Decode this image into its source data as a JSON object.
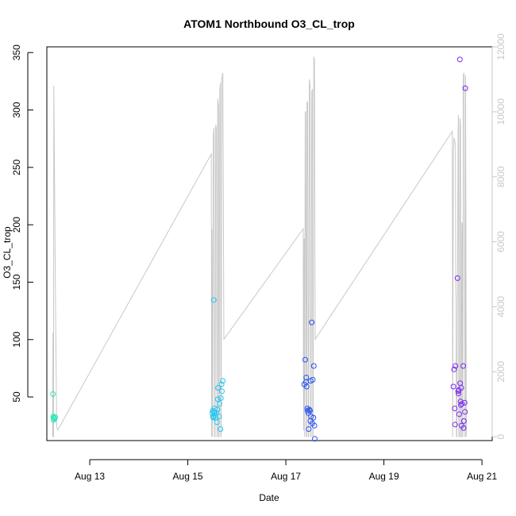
{
  "chart_data": {
    "type": "scatter",
    "title": "ATOM1 Northbound O3_CL_trop",
    "xlabel": "Date",
    "ylabel": "O3_CL_trop",
    "xlim": [
      "2016-08-12T03:00",
      "2016-08-21T05:00"
    ],
    "ylim": [
      12,
      355
    ],
    "y2lim": [
      -120,
      12000
    ],
    "x_ticks": [
      {
        "label": "Aug 13",
        "date": "2016-08-13T00:00"
      },
      {
        "label": "Aug 15",
        "date": "2016-08-15T00:00"
      },
      {
        "label": "Aug 17",
        "date": "2016-08-17T00:00"
      },
      {
        "label": "Aug 19",
        "date": "2016-08-19T00:00"
      },
      {
        "label": "Aug 21",
        "date": "2016-08-21T00:00"
      }
    ],
    "y_ticks": [
      {
        "label": "50",
        "value": 50
      },
      {
        "label": "100",
        "value": 100
      },
      {
        "label": "150",
        "value": 150
      },
      {
        "label": "200",
        "value": 200
      },
      {
        "label": "250",
        "value": 250
      },
      {
        "label": "300",
        "value": 300
      },
      {
        "label": "350",
        "value": 350
      }
    ],
    "y2_ticks": [
      {
        "label": "0",
        "value": 0
      },
      {
        "label": "2000",
        "value": 2000
      },
      {
        "label": "4000",
        "value": 4000
      },
      {
        "label": "6000",
        "value": 6000
      },
      {
        "label": "8000",
        "value": 8000
      },
      {
        "label": "10000",
        "value": 10000
      },
      {
        "label": "12000",
        "value": 12000
      }
    ],
    "grid": false,
    "colors": {
      "altitude_line": "#c8c8c8",
      "flight1": "#2ee8b8",
      "flight2": "#25c6ee",
      "flight3": "#2a52ee",
      "flight4": "#7a28ee"
    },
    "series": [
      {
        "color_key": "flight1",
        "points": [
          [
            "2016-08-12T06:00",
            52.5
          ],
          [
            "2016-08-12T06:10",
            33
          ],
          [
            "2016-08-12T06:15",
            30
          ],
          [
            "2016-08-12T06:25",
            32
          ],
          [
            "2016-08-12T06:40",
            31.5
          ],
          [
            "2016-08-12T06:50",
            31
          ],
          [
            "2016-08-12T07:05",
            32.5
          ]
        ]
      },
      {
        "color_key": "flight2",
        "points": [
          [
            "2016-08-15T12:00",
            36
          ],
          [
            "2016-08-15T12:10",
            38
          ],
          [
            "2016-08-15T12:20",
            33
          ],
          [
            "2016-08-15T12:30",
            32
          ],
          [
            "2016-08-15T12:40",
            134.5
          ],
          [
            "2016-08-15T12:50",
            37
          ],
          [
            "2016-08-15T13:00",
            36
          ],
          [
            "2016-08-15T13:10",
            40
          ],
          [
            "2016-08-15T13:20",
            34
          ],
          [
            "2016-08-15T13:30",
            32
          ],
          [
            "2016-08-15T14:00",
            36
          ],
          [
            "2016-08-15T14:20",
            28
          ],
          [
            "2016-08-15T14:30",
            39
          ],
          [
            "2016-08-15T14:40",
            48
          ],
          [
            "2016-08-15T14:50",
            58
          ],
          [
            "2016-08-15T15:20",
            33
          ],
          [
            "2016-08-15T15:30",
            44
          ],
          [
            "2016-08-15T16:00",
            22
          ],
          [
            "2016-08-15T16:10",
            49
          ],
          [
            "2016-08-15T16:30",
            61
          ],
          [
            "2016-08-15T16:40",
            55
          ],
          [
            "2016-08-15T17:10",
            64
          ]
        ]
      },
      {
        "color_key": "flight3",
        "points": [
          [
            "2016-08-17T09:00",
            61
          ],
          [
            "2016-08-17T09:30",
            82.5
          ],
          [
            "2016-08-17T09:50",
            63
          ],
          [
            "2016-08-17T10:00",
            67
          ],
          [
            "2016-08-17T10:10",
            59
          ],
          [
            "2016-08-17T10:30",
            40
          ],
          [
            "2016-08-17T10:40",
            38
          ],
          [
            "2016-08-17T11:00",
            36
          ],
          [
            "2016-08-17T11:10",
            22
          ],
          [
            "2016-08-17T11:30",
            39
          ],
          [
            "2016-08-17T11:50",
            38
          ],
          [
            "2016-08-17T12:00",
            29
          ],
          [
            "2016-08-17T12:10",
            64
          ],
          [
            "2016-08-17T12:20",
            33
          ],
          [
            "2016-08-17T12:40",
            115
          ],
          [
            "2016-08-17T13:00",
            27
          ],
          [
            "2016-08-17T13:10",
            65
          ],
          [
            "2016-08-17T13:30",
            32
          ],
          [
            "2016-08-17T13:40",
            77
          ],
          [
            "2016-08-17T14:00",
            25
          ],
          [
            "2016-08-17T14:10",
            13.5
          ]
        ]
      },
      {
        "color_key": "flight4",
        "points": [
          [
            "2016-08-20T10:00",
            59
          ],
          [
            "2016-08-20T10:20",
            74
          ],
          [
            "2016-08-20T10:40",
            40
          ],
          [
            "2016-08-20T10:50",
            26
          ],
          [
            "2016-08-20T11:00",
            77
          ],
          [
            "2016-08-20T12:00",
            153.5
          ],
          [
            "2016-08-20T12:20",
            55
          ],
          [
            "2016-08-20T12:30",
            53
          ],
          [
            "2016-08-20T12:40",
            56
          ],
          [
            "2016-08-20T12:50",
            35
          ],
          [
            "2016-08-20T13:10",
            344
          ],
          [
            "2016-08-20T13:20",
            62
          ],
          [
            "2016-08-20T13:30",
            46
          ],
          [
            "2016-08-20T13:40",
            43
          ],
          [
            "2016-08-20T13:50",
            58
          ],
          [
            "2016-08-20T14:00",
            25
          ],
          [
            "2016-08-20T14:10",
            44
          ],
          [
            "2016-08-20T14:50",
            77
          ],
          [
            "2016-08-20T15:00",
            23
          ],
          [
            "2016-08-20T15:10",
            29
          ],
          [
            "2016-08-20T15:30",
            45
          ],
          [
            "2016-08-20T15:40",
            37
          ],
          [
            "2016-08-20T15:50",
            319
          ]
        ]
      }
    ],
    "altitude_line": [
      [
        "2016-08-12T05:50",
        0
      ],
      [
        "2016-08-12T06:00",
        3200
      ],
      [
        "2016-08-12T06:10",
        0
      ],
      [
        "2016-08-12T06:15",
        0
      ],
      [
        "2016-08-12T06:25",
        10800
      ],
      [
        "2016-08-12T07:10",
        4800
      ],
      [
        "2016-08-12T07:50",
        300
      ],
      [
        "2016-08-12T08:20",
        200
      ],
      [
        "2016-08-15T11:30",
        8700
      ],
      [
        "2016-08-15T11:40",
        0
      ],
      [
        "2016-08-15T11:50",
        6400
      ],
      [
        "2016-08-15T12:10",
        0
      ],
      [
        "2016-08-15T12:30",
        9300
      ],
      [
        "2016-08-15T12:50",
        9500
      ],
      [
        "2016-08-15T13:10",
        0
      ],
      [
        "2016-08-15T13:20",
        0
      ],
      [
        "2016-08-15T13:40",
        9600
      ],
      [
        "2016-08-15T14:00",
        9500
      ],
      [
        "2016-08-15T14:20",
        0
      ],
      [
        "2016-08-15T14:30",
        0
      ],
      [
        "2016-08-15T14:40",
        10400
      ],
      [
        "2016-08-15T15:00",
        10200
      ],
      [
        "2016-08-15T15:10",
        0
      ],
      [
        "2016-08-15T15:20",
        0
      ],
      [
        "2016-08-15T15:40",
        10700
      ],
      [
        "2016-08-15T16:00",
        10900
      ],
      [
        "2016-08-15T16:10",
        0
      ],
      [
        "2016-08-15T16:20",
        0
      ],
      [
        "2016-08-15T16:40",
        11000
      ],
      [
        "2016-08-15T16:50",
        11100
      ],
      [
        "2016-08-15T17:10",
        11200
      ],
      [
        "2016-08-15T17:40",
        3000
      ],
      [
        "2016-08-17T08:30",
        6400
      ],
      [
        "2016-08-17T08:40",
        200
      ],
      [
        "2016-08-17T09:00",
        6100
      ],
      [
        "2016-08-17T09:10",
        0
      ],
      [
        "2016-08-17T09:30",
        10000
      ],
      [
        "2016-08-17T09:40",
        10000
      ],
      [
        "2016-08-17T10:00",
        0
      ],
      [
        "2016-08-17T10:10",
        0
      ],
      [
        "2016-08-17T10:20",
        10300
      ],
      [
        "2016-08-17T10:40",
        10300
      ],
      [
        "2016-08-17T11:00",
        0
      ],
      [
        "2016-08-17T11:10",
        0
      ],
      [
        "2016-08-17T11:30",
        11000
      ],
      [
        "2016-08-17T11:50",
        10800
      ],
      [
        "2016-08-17T12:10",
        0
      ],
      [
        "2016-08-17T12:20",
        0
      ],
      [
        "2016-08-17T12:40",
        10600
      ],
      [
        "2016-08-17T13:00",
        10700
      ],
      [
        "2016-08-17T13:10",
        0
      ],
      [
        "2016-08-17T13:20",
        0
      ],
      [
        "2016-08-17T13:40",
        11700
      ],
      [
        "2016-08-17T14:00",
        11600
      ],
      [
        "2016-08-17T14:20",
        3000
      ],
      [
        "2016-08-20T09:30",
        9400
      ],
      [
        "2016-08-20T09:40",
        0
      ],
      [
        "2016-08-20T10:00",
        8800
      ],
      [
        "2016-08-20T10:20",
        9200
      ],
      [
        "2016-08-20T10:40",
        9100
      ],
      [
        "2016-08-20T11:00",
        9000
      ],
      [
        "2016-08-20T11:10",
        4600
      ],
      [
        "2016-08-20T11:20",
        4200
      ],
      [
        "2016-08-20T11:30",
        0
      ],
      [
        "2016-08-20T11:40",
        0
      ],
      [
        "2016-08-20T12:20",
        9400
      ],
      [
        "2016-08-20T12:30",
        9900
      ],
      [
        "2016-08-20T12:40",
        0
      ],
      [
        "2016-08-20T13:00",
        0
      ],
      [
        "2016-08-20T13:10",
        9800
      ],
      [
        "2016-08-20T13:30",
        9600
      ],
      [
        "2016-08-20T13:40",
        0
      ],
      [
        "2016-08-20T13:50",
        0
      ],
      [
        "2016-08-20T14:10",
        6600
      ],
      [
        "2016-08-20T14:20",
        6500
      ],
      [
        "2016-08-20T14:30",
        0
      ],
      [
        "2016-08-20T14:40",
        0
      ],
      [
        "2016-08-20T14:50",
        11100
      ],
      [
        "2016-08-20T15:10",
        11200
      ],
      [
        "2016-08-20T15:20",
        11100
      ],
      [
        "2016-08-20T15:40",
        0
      ],
      [
        "2016-08-20T15:50",
        0
      ],
      [
        "2016-08-20T16:00",
        11100
      ],
      [
        "2016-08-20T16:20",
        0
      ]
    ]
  }
}
